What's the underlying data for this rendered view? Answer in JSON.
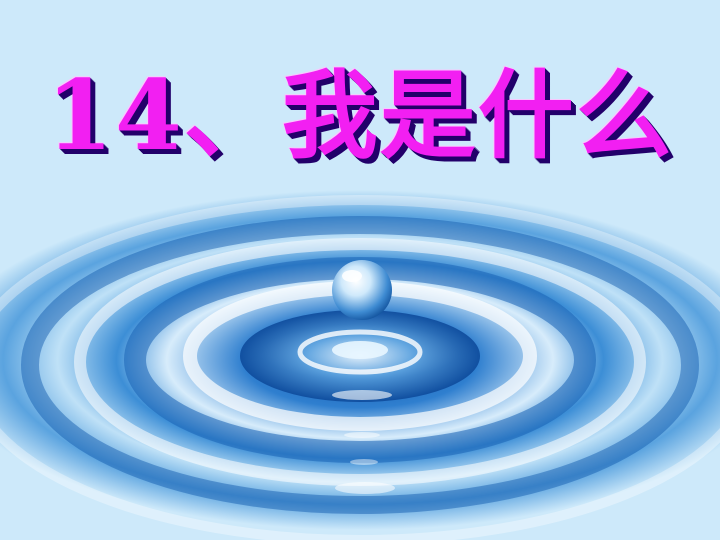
{
  "slide": {
    "title": "14、我是什么"
  },
  "background": {
    "description_icon": "water-drop-ripple-image",
    "colors": {
      "water_deep": "#0d4fa8",
      "water_mid": "#3c8ed6",
      "water_light": "#d7ecfb",
      "title_fill": "#f21ff2",
      "title_shadow": "#22006a"
    }
  }
}
